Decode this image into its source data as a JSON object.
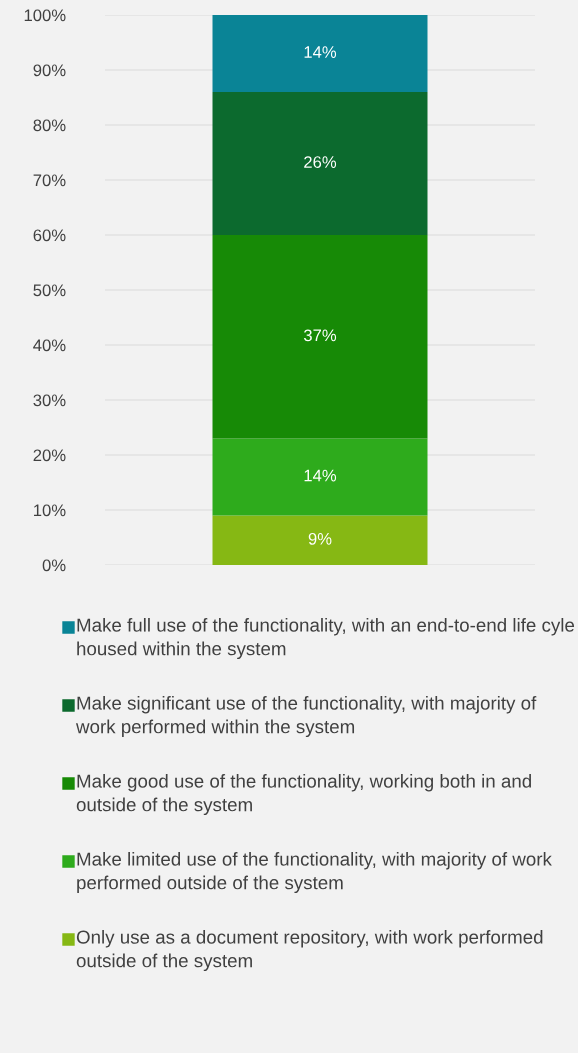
{
  "chart_data": {
    "type": "bar",
    "stacked": true,
    "categories": [
      null
    ],
    "series": [
      {
        "name": "Only use as a document repository, with work performed outside of the system",
        "color": "#86b814",
        "values": [
          9
        ],
        "value_labels": [
          "9%"
        ]
      },
      {
        "name": "Make limited use of the functionality, with majority of work performed outside of the system",
        "color": "#2eab1c",
        "values": [
          14
        ],
        "value_labels": [
          "14%"
        ]
      },
      {
        "name": "Make good use of the functionality, working both in and outside of the system",
        "color": "#178a06",
        "values": [
          37
        ],
        "value_labels": [
          "37%"
        ]
      },
      {
        "name": "Make significant use of the functionality, with majority of work performed within the system",
        "color": "#0c6a2e",
        "values": [
          26
        ],
        "value_labels": [
          "26%"
        ]
      },
      {
        "name": "Make full use of the functionality, with an end-to-end life cyle housed within the system",
        "color": "#0a8496",
        "values": [
          14
        ],
        "value_labels": [
          "14%"
        ]
      }
    ],
    "ylim": [
      0,
      100
    ],
    "yticks": [
      {
        "value": 0,
        "label": "0%"
      },
      {
        "value": 10,
        "label": "10%"
      },
      {
        "value": 20,
        "label": "20%"
      },
      {
        "value": 30,
        "label": "30%"
      },
      {
        "value": 40,
        "label": "40%"
      },
      {
        "value": 50,
        "label": "50%"
      },
      {
        "value": 60,
        "label": "60%"
      },
      {
        "value": 70,
        "label": "70%"
      },
      {
        "value": 80,
        "label": "80%"
      },
      {
        "value": 90,
        "label": "90%"
      },
      {
        "value": 100,
        "label": "100%"
      }
    ],
    "grid": "y",
    "legend": "bottom"
  }
}
